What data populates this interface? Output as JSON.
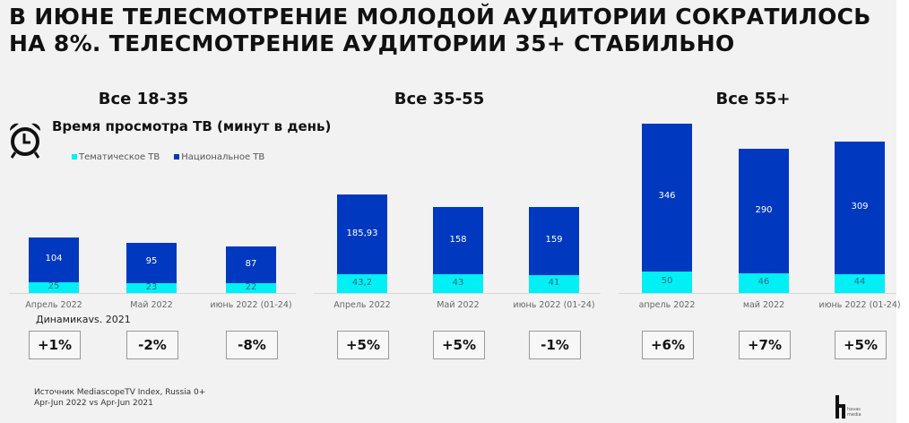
{
  "title_line1": "В ИЮНЕ ТЕЛЕСМОТРЕНИЕ МОЛОДОЙ АУДИТОРИИ СОКРАТИЛОСЬ",
  "title_line2": "НА 8%. ТЕЛЕСМОТРЕНИЕ АУДИТОРИИ 35+ СТАБИЛЬНО",
  "subtitle": "Время просмотра ТВ (минут в день)",
  "dynamics_label": "Динамикаvs. 2021",
  "source_line1": "Источник MediascopeTV Index, Russia 0+",
  "source_line2": "Apr-Jun 2022 vs Apr-Jun 2021",
  "logo_text": "havas media",
  "colors": {
    "thematic": "#00f0f5",
    "national": "#0038c0"
  },
  "chart_data": {
    "type": "bar",
    "stacked": true,
    "title": "Время просмотра ТВ (минут в день)",
    "legend": [
      "Тематическое ТВ",
      "Национальное ТВ"
    ],
    "legend_position": "top",
    "panels": [
      {
        "title": "Все 18-35",
        "categories": [
          "Апрель 2022",
          "Май 2022",
          "июнь 2022 (01-24)"
        ],
        "series": [
          {
            "name": "Тематическое ТВ",
            "values": [
              25,
              23,
              22
            ],
            "labels": [
              "25",
              "23",
              "22"
            ]
          },
          {
            "name": "Национальное ТВ",
            "values": [
              104,
              95,
              87
            ],
            "labels": [
              "104",
              "95",
              "87"
            ]
          }
        ],
        "dynamics": [
          "+1%",
          "-2%",
          "-8%"
        ]
      },
      {
        "title": "Все 35-55",
        "categories": [
          "Апрель 2022",
          "Май 2022",
          "июнь 2022 (01-24)"
        ],
        "series": [
          {
            "name": "Тематическое ТВ",
            "values": [
              43.2,
              43,
              41
            ],
            "labels": [
              "43,2",
              "43",
              "41"
            ]
          },
          {
            "name": "Национальное ТВ",
            "values": [
              185.93,
              158,
              159
            ],
            "labels": [
              "185,93",
              "158",
              "159"
            ]
          }
        ],
        "dynamics": [
          "+5%",
          "+5%",
          "-1%"
        ]
      },
      {
        "title": "Все 55+",
        "categories": [
          "апрель 2022",
          "май 2022",
          "июнь 2022 (01-24)"
        ],
        "series": [
          {
            "name": "Тематическое ТВ",
            "values": [
              50,
              46,
              44
            ],
            "labels": [
              "50",
              "46",
              "44"
            ]
          },
          {
            "name": "Национальное ТВ",
            "values": [
              346,
              290,
              309
            ],
            "labels": [
              "346",
              "290",
              "309"
            ]
          }
        ],
        "dynamics": [
          "+6%",
          "+7%",
          "+5%"
        ]
      }
    ]
  }
}
